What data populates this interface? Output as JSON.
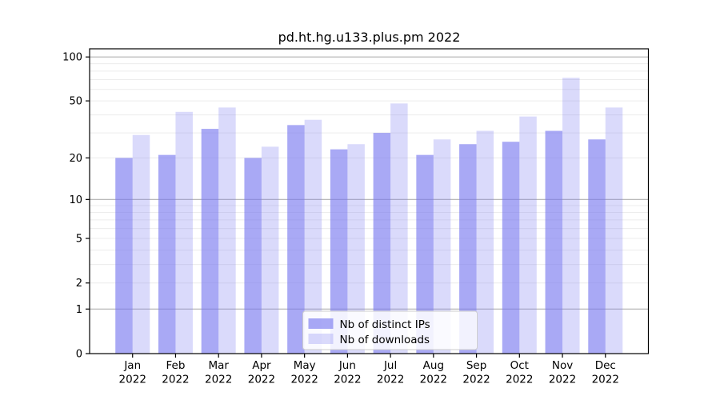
{
  "chart_data": {
    "type": "bar",
    "title": "pd.ht.hg.u133.plus.pm 2022",
    "categories": [
      "Jan",
      "Feb",
      "Mar",
      "Apr",
      "May",
      "Jun",
      "Jul",
      "Aug",
      "Sep",
      "Oct",
      "Nov",
      "Dec"
    ],
    "category_year": "2022",
    "series": [
      {
        "name": "Nb of distinct IPs",
        "color": "rgba(123,123,240,0.65)",
        "values": [
          20,
          21,
          32,
          20,
          34,
          23,
          30,
          21,
          25,
          26,
          31,
          27
        ]
      },
      {
        "name": "Nb of downloads",
        "color": "rgba(123,123,240,0.28)",
        "values": [
          29,
          42,
          45,
          24,
          37,
          25,
          48,
          27,
          31,
          39,
          72,
          45
        ]
      }
    ],
    "yscale": "log10(1+v)",
    "ylim": [
      0,
      114
    ],
    "ytick_labels": [
      0,
      1,
      2,
      5,
      10,
      20,
      50,
      100
    ],
    "grid": {
      "major_values": [
        1,
        10,
        100
      ],
      "minor_values": [
        2,
        3,
        4,
        5,
        6,
        7,
        8,
        9,
        20,
        30,
        40,
        50,
        60,
        70,
        80,
        90
      ],
      "major_color": "#b0b0b0",
      "minor_color": "#ececec"
    },
    "legend": {
      "location": "lower center",
      "entries": [
        "Nb of distinct IPs",
        "Nb of downloads"
      ],
      "background": "rgba(255,255,255,0.85)",
      "border_color": "#cccccc"
    },
    "axis_color": "#000000",
    "plot_background": "#ffffff"
  }
}
